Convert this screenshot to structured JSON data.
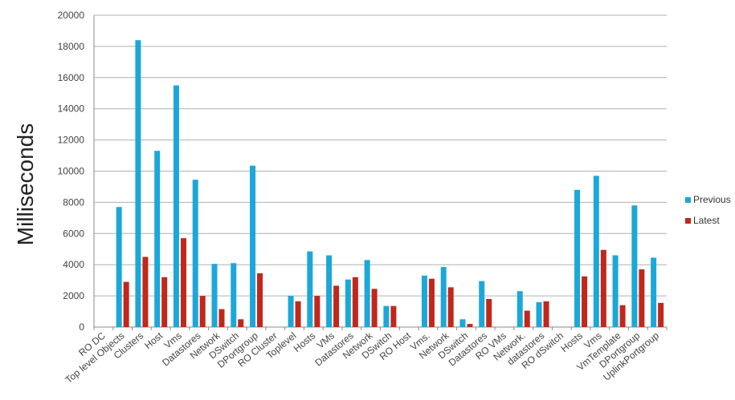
{
  "chart_data": {
    "type": "bar",
    "ylabel": "Milliseconds",
    "xlabel": "",
    "ylim": [
      0,
      20000
    ],
    "yticks": [
      0,
      2000,
      4000,
      6000,
      8000,
      10000,
      12000,
      14000,
      16000,
      18000,
      20000
    ],
    "grid": true,
    "legend_position": "right",
    "categories": [
      "RO DC",
      "Top level Objects",
      "Clusters",
      "Host",
      "Vms",
      "Datastores",
      "Network",
      "DSwitch",
      "DPortgroup",
      "RO Cluster",
      "Toplevel",
      "Hosts",
      "VMs",
      "Datastores",
      "Network",
      "DSwitch",
      "RO Host",
      "Vms.",
      "Network",
      "DSwitch",
      "Datastores",
      "RO VMs",
      "Network.",
      "datastores",
      "RO dSwitch",
      "Hosts",
      "Vms",
      "VmTemplate",
      "DPortgroup",
      "UplinkPortgroup"
    ],
    "series": [
      {
        "name": "Previous",
        "color": "#1ba8d8",
        "values": [
          0,
          7700,
          18400,
          11300,
          15500,
          9450,
          4050,
          4100,
          10350,
          0,
          2000,
          4850,
          4600,
          3050,
          4300,
          1350,
          0,
          3300,
          3850,
          500,
          2950,
          0,
          2300,
          1600,
          0,
          8800,
          9700,
          4600,
          7800,
          4450
        ]
      },
      {
        "name": "Latest",
        "color": "#c0281b",
        "values": [
          0,
          2900,
          4500,
          3200,
          5700,
          2000,
          1150,
          500,
          3450,
          0,
          1650,
          2000,
          2650,
          3200,
          2450,
          1350,
          0,
          3100,
          2550,
          200,
          1800,
          0,
          1050,
          1650,
          0,
          3250,
          4950,
          1400,
          3700,
          1550
        ]
      }
    ]
  }
}
